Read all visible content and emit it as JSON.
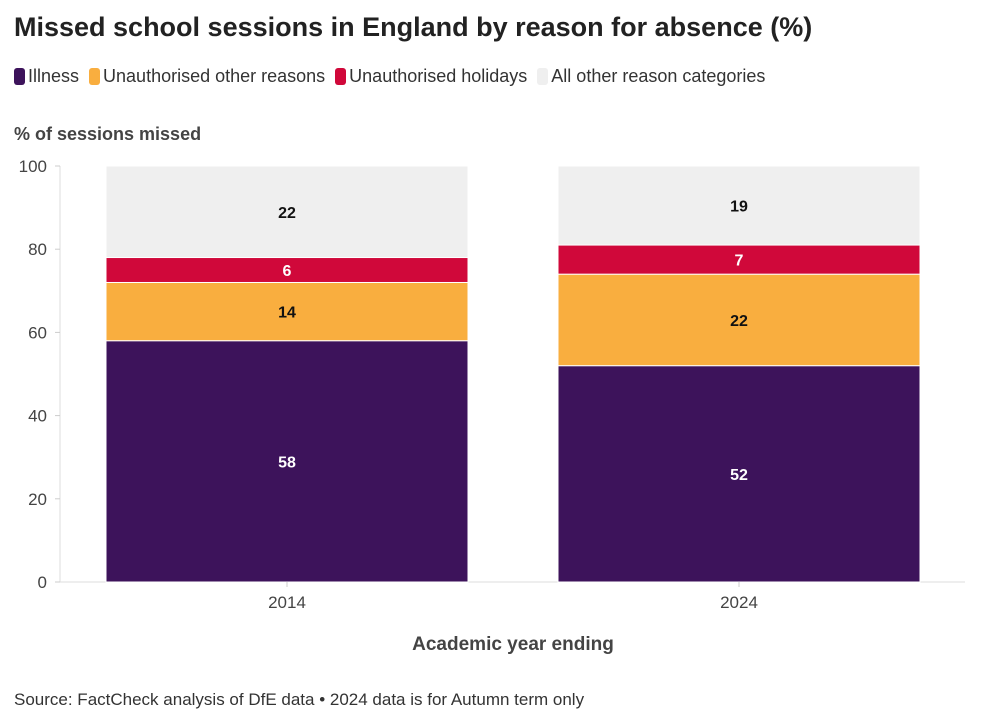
{
  "chart_data": {
    "type": "bar",
    "stacked": true,
    "title": "Missed school sessions in England by reason for absence (%)",
    "ylabel": "% of sessions missed",
    "xlabel": "Academic year ending",
    "ylim": [
      0,
      100
    ],
    "yticks": [
      0,
      20,
      40,
      60,
      80,
      100
    ],
    "grid": false,
    "legend_position": "top-left",
    "categories": [
      "2014",
      "2024"
    ],
    "series": [
      {
        "name": "Illness",
        "color": "#3d135b",
        "label_color": "#ffffff",
        "values": [
          58,
          52
        ]
      },
      {
        "name": "Unauthorised other reasons",
        "color": "#f9ae3f",
        "label_color": "#111111",
        "values": [
          14,
          22
        ]
      },
      {
        "name": "Unauthorised holidays",
        "color": "#d0083a",
        "label_color": "#ffffff",
        "values": [
          6,
          7
        ]
      },
      {
        "name": "All other reason categories",
        "color": "#efefef",
        "label_color": "#111111",
        "values": [
          22,
          19
        ]
      }
    ]
  },
  "source": "Source: FactCheck analysis of DfE data • 2024 data is for Autumn term only"
}
